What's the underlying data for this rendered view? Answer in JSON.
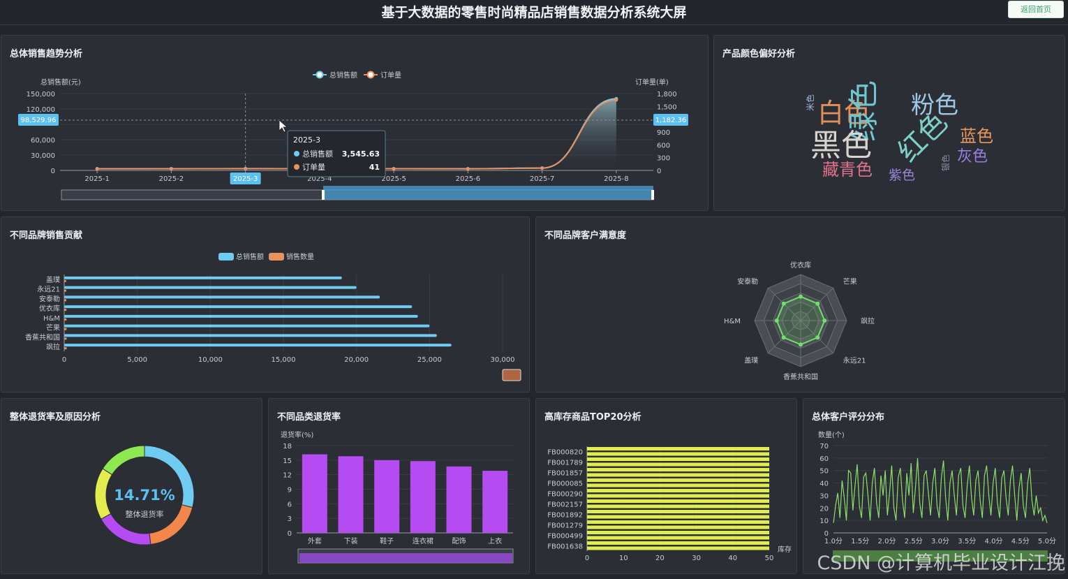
{
  "header": {
    "title": "基于大数据的零售时尚精品店销售数据分析系统大屏",
    "back_button": "返回首页"
  },
  "colors": {
    "background": "#23262c",
    "panel": "#2b2e35",
    "sales_blue": "#6fcbf1",
    "orders_orange": "#e8935f",
    "radar_green": "#6fe06a",
    "stock_yellow": "#e3ec4f",
    "return_purple": "#b54cf2",
    "rating_green": "#8ee06a"
  },
  "trend": {
    "title": "总体销售趋势分析",
    "legend": [
      "总销售额",
      "订单量"
    ],
    "y_left_name": "总销售额(元)",
    "y_right_name": "订单量(单)",
    "y_left_ticks": [
      "150,000",
      "120,000",
      "",
      "60,000",
      "30,000",
      "0"
    ],
    "y_right_ticks": [
      "1,800",
      "1,500",
      "",
      "900",
      "600",
      "300",
      "0"
    ],
    "pointer_left": "98,529.96",
    "pointer_right": "1,182.36",
    "pointer_x": "2025-3",
    "tooltip": {
      "title": "2025-3",
      "rows": [
        {
          "label": "总销售额",
          "value": "3,545.63"
        },
        {
          "label": "订单量",
          "value": "41"
        }
      ]
    }
  },
  "colors_pref": {
    "title": "产品颜色偏好分析",
    "words": [
      {
        "text": "白色",
        "color": "#e2905a"
      },
      {
        "text": "绿色",
        "color": "#6ec6cf"
      },
      {
        "text": "粉色",
        "color": "#9ec7e3"
      },
      {
        "text": "黑色",
        "color": "#d9d4cf"
      },
      {
        "text": "红色",
        "color": "#7fd0c8"
      },
      {
        "text": "蓝色",
        "color": "#e6985e"
      },
      {
        "text": "灰色",
        "color": "#9b7fe3"
      },
      {
        "text": "藏青色",
        "color": "#e0728d"
      },
      {
        "text": "紫色",
        "color": "#9a86d8"
      },
      {
        "text": "米色",
        "color": "#9fb7dc"
      },
      {
        "text": "银色",
        "color": "#8f8aa6"
      }
    ]
  },
  "brand_sales": {
    "title": "不同品牌销售贡献",
    "legend": [
      "总销售额",
      "销售数量"
    ]
  },
  "satisfaction": {
    "title": "不同品牌客户满意度"
  },
  "return_overall": {
    "title": "整体退货率及原因分析",
    "center_value": "14.71%",
    "center_label": "整体退货率"
  },
  "category_return": {
    "title": "不同品类退货率",
    "y_name": "退货率(%)"
  },
  "stock": {
    "title": "高库存商品TOP20分析",
    "x_name": "库存"
  },
  "rating": {
    "title": "总体客户评分分布",
    "y_name": "数量(个)"
  },
  "watermark": "CSDN @计算机毕业设计江挽",
  "chart_data": [
    {
      "type": "line",
      "title": "总体销售趋势分析",
      "x": [
        "2025-1",
        "2025-2",
        "2025-3",
        "2025-4",
        "2025-5",
        "2025-6",
        "2025-7",
        "2025-8"
      ],
      "series": [
        {
          "name": "总销售额",
          "axis": "left",
          "values": [
            3200,
            3300,
            3545.63,
            3400,
            3400,
            3300,
            4500,
            140000
          ]
        },
        {
          "name": "订单量",
          "axis": "right",
          "values": [
            38,
            40,
            41,
            40,
            40,
            39,
            55,
            1650
          ]
        }
      ],
      "ylim_left": [
        0,
        150000
      ],
      "ylim_right": [
        0,
        1800
      ],
      "ylabel_left": "总销售额(元)",
      "ylabel_right": "订单量(单)"
    },
    {
      "type": "bar",
      "title": "不同品牌销售贡献",
      "orientation": "horizontal",
      "categories": [
        "盖璞",
        "永远21",
        "安泰勒",
        "优衣库",
        "H&M",
        "芒果",
        "香蕉共和国",
        "飒拉"
      ],
      "series": [
        {
          "name": "总销售额",
          "values": [
            19000,
            20000,
            21600,
            23800,
            24200,
            25000,
            25500,
            26500
          ]
        },
        {
          "name": "销售数量",
          "values": [
            130,
            135,
            140,
            150,
            155,
            160,
            165,
            170
          ]
        }
      ],
      "xticks": [
        "0",
        "5,000",
        "10,000",
        "15,000",
        "20,000",
        "25,000",
        "30,000"
      ],
      "xlim": [
        0,
        30000
      ]
    },
    {
      "type": "radar",
      "title": "不同品牌客户满意度",
      "indicators": [
        "优衣库",
        "芒果",
        "飒拉",
        "永远21",
        "香蕉共和国",
        "盖璞",
        "H&M",
        "安泰勒"
      ],
      "values": [
        0.52,
        0.52,
        0.52,
        0.52,
        0.52,
        0.52,
        0.52,
        0.52
      ]
    },
    {
      "type": "pie",
      "title": "整体退货率及原因分析",
      "slices": [
        {
          "value": 29,
          "color": "#6fcbf1"
        },
        {
          "value": 19,
          "color": "#f3874a"
        },
        {
          "value": 19,
          "color": "#b54cf2"
        },
        {
          "value": 17,
          "color": "#e3ec4f"
        },
        {
          "value": 16,
          "color": "#8ee84f"
        }
      ]
    },
    {
      "type": "bar",
      "title": "不同品类退货率",
      "categories": [
        "外套",
        "下装",
        "鞋子",
        "连衣裙",
        "配饰",
        "上衣"
      ],
      "values": [
        16.2,
        15.8,
        15.0,
        14.8,
        13.7,
        12.8
      ],
      "ylabel": "退货率(%)",
      "yticks": [
        "0",
        "3",
        "6",
        "9",
        "12",
        "15",
        "18"
      ],
      "ylim": [
        0,
        18
      ]
    },
    {
      "type": "bar",
      "title": "高库存商品TOP20分析",
      "orientation": "horizontal",
      "categories": [
        "FB000820",
        "FB001789",
        "FB001857",
        "FB000085",
        "FB000290",
        "FB002157",
        "FB001892",
        "FB001279",
        "FB000499",
        "FB001638"
      ],
      "values": [
        50,
        50,
        50,
        50,
        50,
        50,
        50,
        50,
        50,
        50
      ],
      "xlabel": "库存",
      "xticks": [
        "0",
        "10",
        "20",
        "30",
        "40",
        "50"
      ],
      "xlim": [
        0,
        50
      ]
    },
    {
      "type": "bar",
      "title": "总体客户评分分布",
      "ylabel": "数量(个)",
      "xticks": [
        "1.0分",
        "1.5分",
        "2.0分",
        "2.5分",
        "3.0分",
        "3.5分",
        "4.0分",
        "4.5分",
        "5.0分"
      ],
      "yticks": [
        "0",
        "10",
        "20",
        "30",
        "40",
        "50",
        "60",
        "70"
      ],
      "ylim": [
        0,
        70
      ],
      "x_range": [
        1.0,
        5.0
      ],
      "values": [
        8,
        22,
        32,
        12,
        42,
        28,
        10,
        50,
        48,
        18,
        38,
        55,
        22,
        12,
        45,
        48,
        30,
        10,
        40,
        52,
        24,
        12,
        46,
        30,
        50,
        14,
        32,
        54,
        20,
        10,
        44,
        52,
        26,
        12,
        48,
        30,
        56,
        16,
        36,
        60,
        24,
        12,
        46,
        50,
        32,
        14,
        40,
        52,
        22,
        12,
        44,
        58,
        28,
        10,
        40,
        50,
        30,
        14,
        46,
        52,
        22,
        12,
        38,
        54,
        28,
        14,
        42,
        50,
        26,
        12,
        46,
        54,
        30,
        14,
        40,
        52,
        24,
        12,
        44,
        50,
        28,
        14,
        42,
        54,
        30,
        10,
        36,
        48,
        22,
        12,
        40,
        52,
        26,
        14,
        30,
        16,
        20,
        10,
        14,
        8
      ]
    }
  ]
}
